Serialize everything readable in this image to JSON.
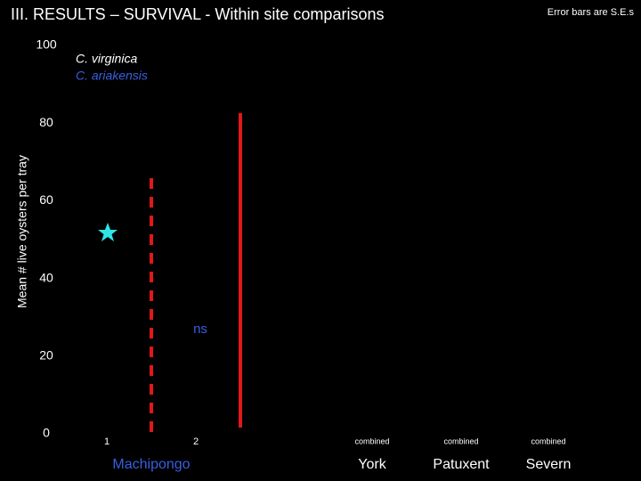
{
  "chart_data": {
    "type": "bar",
    "title": "III.  RESULTS –  SURVIVAL - Within site comparisons",
    "note": "Error bars are S.E.s",
    "y_label": "Mean # live oysters per tray",
    "categories": [
      "1",
      "2",
      "combined",
      "combined",
      "combined"
    ],
    "groups": [
      "Machipongo",
      "York",
      "Patuxent",
      "Severn"
    ],
    "series": [
      {
        "name": "C. virginica",
        "color": "#ffffff"
      },
      {
        "name": "C. ariakensis",
        "color": "#3a5fe0"
      }
    ],
    "annotation": "ns",
    "ylim": [
      0,
      100
    ],
    "yticks": [
      0,
      20,
      40,
      60,
      80,
      100
    ],
    "grid": false
  }
}
